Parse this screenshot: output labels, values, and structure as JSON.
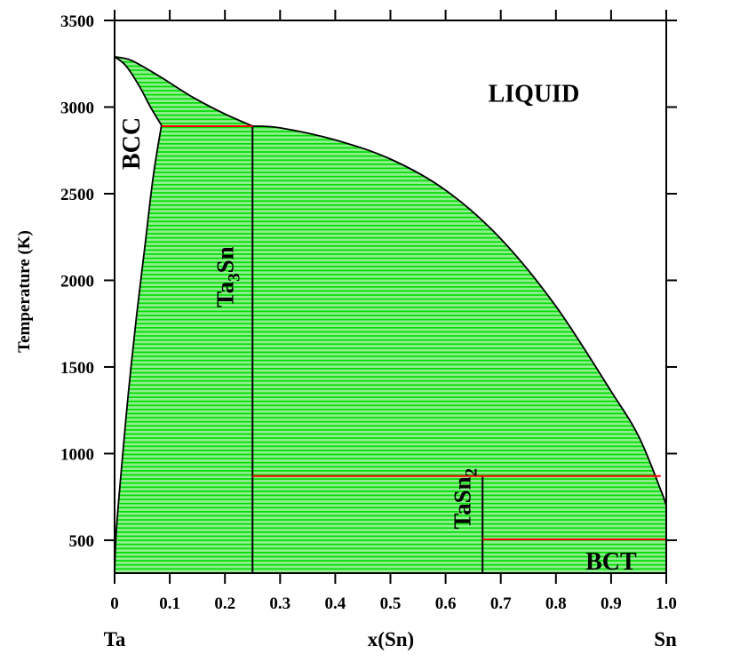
{
  "chart_data": {
    "type": "phase-diagram",
    "title": "",
    "xlabel": "x(Sn)",
    "ylabel": "Temperature (K)",
    "xlim": [
      0,
      1
    ],
    "ylim": [
      310,
      3500
    ],
    "x_ticks": [
      0,
      0.1,
      0.2,
      0.3,
      0.4,
      0.5,
      0.6,
      0.7,
      0.8,
      0.9,
      1.0
    ],
    "x_tick_labels": [
      "0",
      "0.1",
      "0.2",
      "0.3",
      "0.4",
      "0.5",
      "0.6",
      "0.7",
      "0.8",
      "0.9",
      "1.0"
    ],
    "y_ticks": [
      500,
      1000,
      1500,
      2000,
      2500,
      3000,
      3500
    ],
    "y_tick_labels": [
      "500",
      "1000",
      "1500",
      "2000",
      "2500",
      "3000",
      "3500"
    ],
    "x_end_labels": {
      "left": "Ta",
      "right": "Sn"
    },
    "colors": {
      "two_phase_fill": "#00dd00",
      "tie_line_fill": "#90ee90",
      "invariant_line": "#ff0000",
      "boundary": "#000000"
    },
    "region_labels": [
      {
        "text": "LIQUID",
        "x": 0.76,
        "y": 3030
      },
      {
        "text": "BCC",
        "x": 0.045,
        "y": 2790,
        "rotated": true
      }
    ],
    "phase_labels": [
      {
        "main": "Ta",
        "sub": "3",
        "tail": "Sn",
        "x": 0.215,
        "y": 2020
      },
      {
        "main": "TaSn",
        "sub": "2",
        "tail": "",
        "x": 0.645,
        "y": 740
      }
    ],
    "boundaries": {
      "liquidus_left": [
        [
          0.0,
          3290
        ],
        [
          0.03,
          3270
        ],
        [
          0.08,
          3180
        ],
        [
          0.14,
          3060
        ],
        [
          0.2,
          2960
        ],
        [
          0.25,
          2890
        ]
      ],
      "bcc_liquidus": [
        [
          0.0,
          3290
        ],
        [
          0.02,
          3240
        ],
        [
          0.045,
          3120
        ],
        [
          0.065,
          3000
        ],
        [
          0.085,
          2895
        ]
      ],
      "bcc_solvus": [
        [
          0.085,
          2895
        ],
        [
          0.07,
          2600
        ],
        [
          0.055,
          2200
        ],
        [
          0.04,
          1800
        ],
        [
          0.025,
          1350
        ],
        [
          0.012,
          900
        ],
        [
          0.003,
          550
        ],
        [
          0.0,
          310
        ]
      ],
      "liquidus_right": [
        [
          0.25,
          2890
        ],
        [
          0.3,
          2880
        ],
        [
          0.4,
          2810
        ],
        [
          0.5,
          2700
        ],
        [
          0.6,
          2520
        ],
        [
          0.7,
          2240
        ],
        [
          0.8,
          1850
        ],
        [
          0.9,
          1360
        ],
        [
          0.95,
          1100
        ],
        [
          0.99,
          790
        ],
        [
          1.0,
          700
        ]
      ],
      "ta3sn_line": [
        [
          0.25,
          310
        ],
        [
          0.25,
          2890
        ]
      ],
      "tasn2_line": [
        [
          0.667,
          310
        ],
        [
          0.667,
          870
        ]
      ],
      "sn_edge": [
        [
          1.0,
          310
        ],
        [
          1.0,
          700
        ]
      ]
    },
    "invariant_lines": [
      {
        "x": [
          0.085,
          0.25
        ],
        "y": 2890
      },
      {
        "x": [
          0.25,
          0.99
        ],
        "y": 870
      },
      {
        "x": [
          0.667,
          1.0
        ],
        "y": 505
      }
    ]
  }
}
